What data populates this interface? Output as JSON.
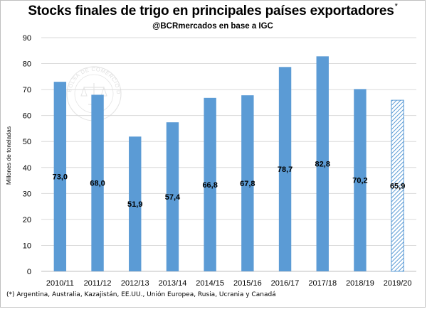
{
  "header": {
    "title": "Stocks finales de trigo en principales países exportadores",
    "title_mark": "*",
    "subtitle": "@BCRmercados  en base a IGC"
  },
  "footnote": "(*) Argentina,  Australia, Kazajistán, EE.UU., Unión Europea,  Rusia, Ucrania y Canadá",
  "watermark": {
    "text": "BOLSA DE COMERCIO DE ROSARIO"
  },
  "colors": {
    "bar": "#5b9bd5",
    "bar_projected_stroke": "#5b9bd5",
    "grid": "#d9d9d9",
    "axis": "#bfbfbf"
  },
  "chart_data": {
    "type": "bar",
    "title": "Stocks finales de trigo en principales países exportadores",
    "subtitle": "@BCRmercados  en base a IGC",
    "xlabel": "",
    "ylabel": "Millones de toneladas",
    "ylim": [
      0,
      90
    ],
    "yticks": [
      0,
      10,
      20,
      30,
      40,
      50,
      60,
      70,
      80,
      90
    ],
    "grid": true,
    "legend": "none",
    "categories": [
      "2010/11",
      "2011/12",
      "2012/13",
      "2013/14",
      "2014/15",
      "2015/16",
      "2016/17",
      "2017/18",
      "2018/19",
      "2019/20"
    ],
    "values": [
      73.0,
      68.0,
      51.9,
      57.4,
      66.8,
      67.8,
      78.7,
      82.8,
      70.2,
      65.9
    ],
    "data_labels": [
      "73,0",
      "68,0",
      "51,9",
      "57,4",
      "66,8",
      "67,8",
      "78,7",
      "82,8",
      "70,2",
      "65,9"
    ],
    "projected": [
      false,
      false,
      false,
      false,
      false,
      false,
      false,
      false,
      false,
      true
    ]
  }
}
